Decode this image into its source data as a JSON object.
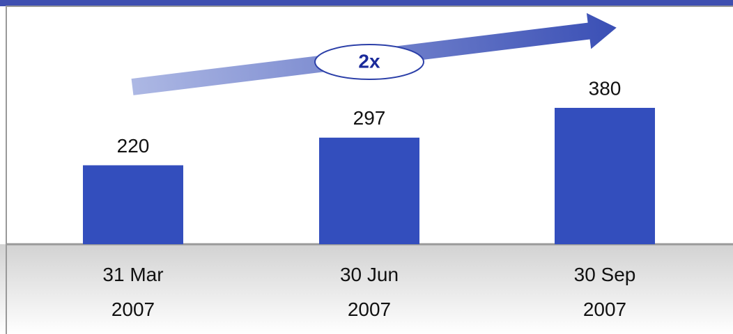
{
  "chart_data": {
    "type": "bar",
    "categories": [
      "31 Mar 2007",
      "30 Jun 2007",
      "30 Sep 2007"
    ],
    "values": [
      220,
      297,
      380
    ],
    "color": "#334ebd",
    "annotation": "2x"
  }
}
